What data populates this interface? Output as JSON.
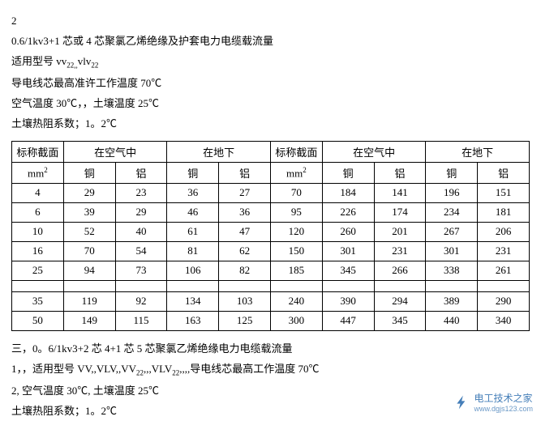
{
  "header": {
    "l0": "2",
    "l1": "0.6/1kv3+1 芯或 4 芯聚氯乙烯绝缘及护套电力电缆载流量",
    "l2a": "适用型号 vv",
    "l2b": "22,,",
    "l2c": "vlv",
    "l2d": "22",
    "l3": "导电线芯最高准许工作温度 70℃",
    "l4": "空气温度 30℃，，土壤温度 25℃",
    "l5": "土壤热阻系数；1。2℃"
  },
  "tbl": {
    "h": {
      "cs": "标称截面",
      "air": "在空气中",
      "ug": "在地下",
      "unit": "mm",
      "exp": "2",
      "cu": "铜",
      "al": "铝"
    },
    "rows": [
      [
        "4",
        "29",
        "23",
        "36",
        "27",
        "70",
        "184",
        "141",
        "196",
        "151"
      ],
      [
        "6",
        "39",
        "29",
        "46",
        "36",
        "95",
        "226",
        "174",
        "234",
        "181"
      ],
      [
        "10",
        "52",
        "40",
        "61",
        "47",
        "120",
        "260",
        "201",
        "267",
        "206"
      ],
      [
        "16",
        "70",
        "54",
        "81",
        "62",
        "150",
        "301",
        "231",
        "301",
        "231"
      ],
      [
        "25",
        "94",
        "73",
        "106",
        "82",
        "185",
        "345",
        "266",
        "338",
        "261"
      ]
    ],
    "rows2": [
      [
        "35",
        "119",
        "92",
        "134",
        "103",
        "240",
        "390",
        "294",
        "389",
        "290"
      ],
      [
        "50",
        "149",
        "115",
        "163",
        "125",
        "300",
        "447",
        "345",
        "440",
        "340"
      ]
    ]
  },
  "footer": {
    "f1": "三，0。6/1kv3+2 芯 4+1 芯 5 芯聚氯乙烯绝缘电力电缆载流量",
    "f2a": "1，，适用型号 VV,,VLV,,VV",
    "f2b": "22",
    "f2c": ",,,VLV",
    "f2d": "22",
    "f2e": ",,,,导电线芯最高工作温度 70℃",
    "f3": "2, 空气温度 30℃, 土壤温度 25℃",
    "f4": "土壤热阻系数；1。2℃"
  },
  "wm": {
    "t": "电工技术之家",
    "u": "www.dgjs123.com"
  }
}
